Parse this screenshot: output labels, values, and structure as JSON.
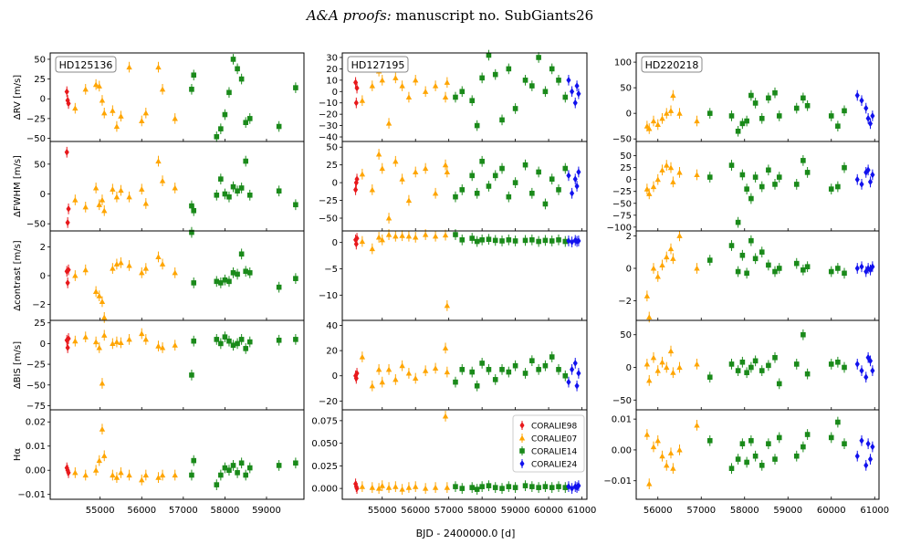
{
  "header": {
    "journal_italic": "A&A proofs:",
    "manuscript": "manuscript no. SubGiants26"
  },
  "chart_data": {
    "type": "scatter",
    "xlabel": "BJD - 2400000.0 [d]",
    "row_labels": [
      "ΔRV [m/s]",
      "ΔFWHM [m/s]",
      "Δcontrast [m/s]",
      "ΔBIS [m/s]",
      "Hα"
    ],
    "legend": [
      {
        "name": "CORALIE98",
        "color": "#e8191c",
        "marker": "diamond"
      },
      {
        "name": "CORALIE07",
        "color": "#ffa500",
        "marker": "triangle"
      },
      {
        "name": "CORALIE14",
        "color": "#1a8a1a",
        "marker": "square"
      },
      {
        "name": "CORALIE24",
        "color": "#1111ee",
        "marker": "diamond"
      }
    ],
    "stars": [
      {
        "name": "HD125136",
        "xlim": [
          53800,
          59900
        ],
        "xticks": [
          55000,
          56000,
          57000,
          58000,
          59000
        ],
        "rows": [
          {
            "ylim": [
              -54,
              58
            ],
            "yticks": [
              -50,
              -25,
              0,
              25,
              50
            ]
          },
          {
            "ylim": [
              -62,
              88
            ],
            "yticks": [
              -50,
              0,
              50
            ]
          },
          {
            "ylim": [
              -3.1,
              3.1
            ],
            "yticks": [
              -2,
              0,
              2
            ]
          },
          {
            "ylim": [
              -80,
              28
            ],
            "yticks": [
              -75,
              -50,
              -25,
              0,
              25
            ]
          },
          {
            "ylim": [
              -0.012,
              0.025
            ],
            "yticks": [
              -0.01,
              0.0,
              0.01,
              0.02
            ]
          }
        ],
        "series": {
          "CORALIE98": [
            [
              54200,
              9,
              70,
              0.3,
              4,
              0.001
            ],
            [
              54220,
              -2,
              -48,
              -0.5,
              -5,
              0.0
            ],
            [
              54240,
              -6,
              -25,
              0.4,
              6,
              -0.001
            ]
          ],
          "CORALIE07": [
            [
              54400,
              -12,
              -10,
              0.0,
              3,
              -0.001
            ],
            [
              54650,
              12,
              -22,
              0.4,
              8,
              -0.002
            ],
            [
              54900,
              18,
              10,
              -1.1,
              2,
              0.0
            ],
            [
              54980,
              16,
              -18,
              -1.4,
              -5,
              0.004
            ],
            [
              55050,
              -2,
              -10,
              -1.8,
              -48,
              0.017
            ],
            [
              55100,
              -18,
              -28,
              -2.9,
              10,
              0.006
            ],
            [
              55300,
              -15,
              8,
              0.5,
              0,
              -0.002
            ],
            [
              55400,
              -35,
              -5,
              0.8,
              2,
              -0.003
            ],
            [
              55500,
              -22,
              6,
              0.9,
              1,
              -0.001
            ],
            [
              55700,
              40,
              -5,
              0.7,
              5,
              -0.002
            ],
            [
              56000,
              -28,
              8,
              0.2,
              12,
              -0.004
            ],
            [
              56100,
              -18,
              -16,
              0.5,
              5,
              -0.002
            ],
            [
              56400,
              40,
              55,
              1.3,
              -3,
              -0.003
            ],
            [
              56500,
              12,
              22,
              0.8,
              -5,
              -0.002
            ],
            [
              56800,
              -25,
              10,
              0.2,
              -2,
              -0.002
            ]
          ],
          "CORALIE14": [
            [
              57200,
              12,
              -20,
              3.0,
              -38,
              -0.002
            ],
            [
              57250,
              30,
              -28,
              -0.5,
              3,
              0.004
            ],
            [
              57800,
              -48,
              -2,
              -0.4,
              5,
              -0.006
            ],
            [
              57900,
              -38,
              25,
              -0.5,
              0,
              -0.002
            ],
            [
              58000,
              -20,
              0,
              -0.3,
              8,
              0.001
            ],
            [
              58100,
              8,
              -5,
              -0.4,
              3,
              0.0
            ],
            [
              58200,
              50,
              12,
              0.2,
              -2,
              0.002
            ],
            [
              58300,
              38,
              5,
              0.1,
              0,
              -0.001
            ],
            [
              58400,
              25,
              10,
              1.5,
              5,
              0.003
            ],
            [
              58500,
              -30,
              55,
              0.3,
              -6,
              -0.002
            ],
            [
              58600,
              -25,
              -2,
              0.2,
              2,
              0.001
            ],
            [
              59300,
              -35,
              5,
              -0.8,
              4,
              0.002
            ],
            [
              59700,
              14,
              -18,
              -0.2,
              5,
              0.003
            ]
          ],
          "CORALIE24": []
        }
      },
      {
        "name": "HD127195",
        "xlim": [
          53800,
          61150
        ],
        "xticks": [
          55000,
          56000,
          57000,
          58000,
          59000,
          60000,
          61000
        ],
        "rows": [
          {
            "ylim": [
              -44,
              34
            ],
            "yticks": [
              -40,
              -30,
              -20,
              -10,
              0,
              10,
              20,
              30
            ]
          },
          {
            "ylim": [
              -68,
              58
            ],
            "yticks": [
              -50,
              -25,
              0,
              25,
              50
            ]
          },
          {
            "ylim": [
              -14.8,
              2.2
            ],
            "yticks": [
              -10,
              -5,
              0
            ]
          },
          {
            "ylim": [
              -27,
              44
            ],
            "yticks": [
              -20,
              0,
              20,
              40
            ]
          },
          {
            "ylim": [
              -0.012,
              0.087
            ],
            "yticks": [
              0.0,
              0.025,
              0.05,
              0.075
            ]
          }
        ],
        "series": {
          "CORALIE98": [
            [
              54200,
              8,
              -10,
              0.5,
              0,
              0.005
            ],
            [
              54220,
              -10,
              0,
              -0.3,
              -2,
              0.002
            ],
            [
              54240,
              3,
              5,
              0.8,
              2,
              0.0
            ]
          ],
          "CORALIE07": [
            [
              54400,
              -8,
              12,
              0.2,
              15,
              0.002
            ],
            [
              54700,
              5,
              -10,
              -1.2,
              -8,
              0.001
            ],
            [
              54900,
              18,
              40,
              1.0,
              5,
              0.0
            ],
            [
              55000,
              10,
              20,
              0.5,
              -5,
              0.003
            ],
            [
              55200,
              -28,
              -50,
              1.5,
              5,
              0.001
            ],
            [
              55400,
              12,
              30,
              1.2,
              -3,
              0.002
            ],
            [
              55600,
              5,
              5,
              1.3,
              8,
              -0.001
            ],
            [
              55800,
              -5,
              -25,
              1.2,
              2,
              0.001
            ],
            [
              56000,
              10,
              15,
              1.0,
              -2,
              0.002
            ],
            [
              56300,
              0,
              20,
              1.5,
              4,
              0.0
            ],
            [
              56600,
              5,
              -15,
              1.2,
              6,
              0.001
            ],
            [
              56900,
              -5,
              25,
              1.4,
              22,
              0.08
            ],
            [
              56950,
              8,
              15,
              -12.0,
              3,
              0.001
            ]
          ],
          "CORALIE14": [
            [
              57200,
              -5,
              -20,
              1.5,
              -5,
              0.002
            ],
            [
              57400,
              0,
              -10,
              0.5,
              5,
              0.0
            ],
            [
              57700,
              -8,
              10,
              0.8,
              3,
              0.001
            ],
            [
              57850,
              -30,
              -15,
              0.2,
              -8,
              -0.001
            ],
            [
              58000,
              12,
              30,
              0.5,
              10,
              0.002
            ],
            [
              58200,
              32,
              -5,
              0.6,
              5,
              0.003
            ],
            [
              58400,
              15,
              10,
              0.4,
              -3,
              0.001
            ],
            [
              58600,
              -25,
              20,
              0.3,
              5,
              0.0
            ],
            [
              58800,
              20,
              -20,
              0.5,
              3,
              0.002
            ],
            [
              59000,
              -15,
              0,
              0.3,
              8,
              0.001
            ],
            [
              59300,
              10,
              25,
              0.4,
              2,
              0.003
            ],
            [
              59500,
              5,
              -15,
              0.5,
              12,
              0.002
            ],
            [
              59700,
              30,
              15,
              0.2,
              5,
              0.001
            ],
            [
              59900,
              0,
              -30,
              0.4,
              8,
              0.002
            ],
            [
              60100,
              20,
              5,
              0.3,
              15,
              0.001
            ],
            [
              60300,
              10,
              -10,
              0.5,
              5,
              0.002
            ],
            [
              60500,
              -5,
              20,
              0.2,
              0,
              0.001
            ]
          ],
          "CORALIE24": [
            [
              60600,
              10,
              10,
              0.3,
              -5,
              0.002
            ],
            [
              60700,
              0,
              -15,
              0.1,
              5,
              0.0
            ],
            [
              60800,
              -10,
              5,
              0.4,
              10,
              0.002
            ],
            [
              60850,
              5,
              -5,
              0.2,
              -8,
              0.001
            ],
            [
              60900,
              -2,
              15,
              0.3,
              2,
              0.003
            ]
          ]
        }
      },
      {
        "name": "HD220218",
        "xlim": [
          55500,
          61100
        ],
        "xticks": [
          56000,
          57000,
          58000,
          59000,
          60000,
          61000
        ],
        "rows": [
          {
            "ylim": [
              -55,
              118
            ],
            "yticks": [
              -50,
              0,
              50,
              100
            ]
          },
          {
            "ylim": [
              -108,
              80
            ],
            "yticks": [
              -100,
              -75,
              -50,
              -25,
              0,
              25,
              50
            ]
          },
          {
            "ylim": [
              -3.2,
              2.3
            ],
            "yticks": [
              -2,
              0,
              2
            ]
          },
          {
            "ylim": [
              -65,
              72
            ],
            "yticks": [
              -50,
              0,
              50
            ]
          },
          {
            "ylim": [
              -0.016,
              0.013
            ],
            "yticks": [
              -0.01,
              0.0,
              0.01
            ]
          }
        ],
        "series": {
          "CORALIE98": [],
          "CORALIE07": [
            [
              55750,
              -25,
              -20,
              -1.7,
              5,
              0.005
            ],
            [
              55800,
              -30,
              -30,
              -3.0,
              -20,
              -0.011
            ],
            [
              55900,
              -15,
              -15,
              0.0,
              15,
              0.001
            ],
            [
              56000,
              -22,
              0,
              -0.5,
              -5,
              0.003
            ],
            [
              56100,
              -10,
              20,
              0.2,
              8,
              -0.002
            ],
            [
              56200,
              0,
              30,
              0.7,
              0,
              -0.005
            ],
            [
              56300,
              5,
              25,
              1.2,
              25,
              -0.001
            ],
            [
              56350,
              35,
              -5,
              0.6,
              -8,
              -0.006
            ],
            [
              56500,
              0,
              15,
              2.0,
              0,
              0.0
            ],
            [
              56900,
              -15,
              10,
              0.0,
              5,
              0.008
            ]
          ],
          "CORALIE14": [
            [
              57200,
              0,
              5,
              0.5,
              -15,
              0.003
            ],
            [
              57700,
              -5,
              30,
              1.4,
              5,
              -0.006
            ],
            [
              57850,
              -35,
              -90,
              -0.2,
              -5,
              -0.003
            ],
            [
              57950,
              -20,
              10,
              0.8,
              8,
              0.002
            ],
            [
              58050,
              -15,
              -20,
              -0.3,
              -8,
              -0.004
            ],
            [
              58150,
              35,
              -40,
              1.7,
              0,
              0.003
            ],
            [
              58250,
              20,
              5,
              0.6,
              10,
              -0.002
            ],
            [
              58400,
              -10,
              -15,
              1.0,
              -5,
              -0.005
            ],
            [
              58550,
              30,
              20,
              0.2,
              3,
              0.002
            ],
            [
              58700,
              40,
              -10,
              -0.2,
              15,
              -0.003
            ],
            [
              58800,
              -5,
              5,
              0.0,
              -25,
              0.004
            ],
            [
              59200,
              10,
              -10,
              0.3,
              5,
              -0.002
            ],
            [
              59350,
              30,
              40,
              -0.1,
              50,
              0.001
            ],
            [
              59450,
              15,
              15,
              0.1,
              -10,
              0.005
            ],
            [
              60000,
              -5,
              -20,
              -0.2,
              5,
              0.004
            ],
            [
              60150,
              -25,
              -15,
              0.0,
              8,
              0.009
            ],
            [
              60300,
              5,
              25,
              -0.3,
              0,
              0.002
            ]
          ],
          "CORALIE24": [
            [
              60600,
              35,
              0,
              0.0,
              5,
              -0.002
            ],
            [
              60700,
              25,
              -10,
              0.1,
              -5,
              0.003
            ],
            [
              60800,
              10,
              15,
              -0.2,
              -15,
              -0.005
            ],
            [
              60850,
              -10,
              20,
              0.0,
              15,
              0.002
            ],
            [
              60900,
              -20,
              -5,
              -0.1,
              10,
              -0.003
            ],
            [
              60950,
              -5,
              10,
              0.1,
              -5,
              0.001
            ]
          ]
        }
      }
    ]
  }
}
